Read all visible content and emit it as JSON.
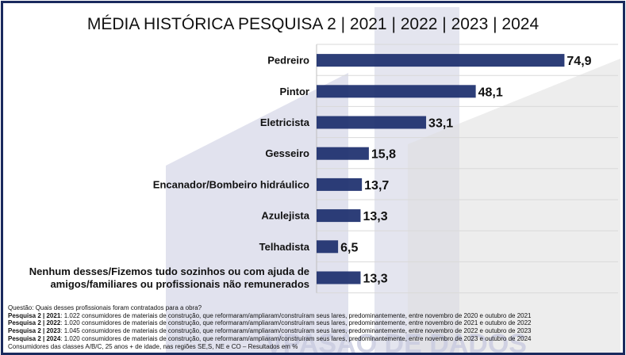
{
  "title": "MÉDIA HISTÓRICA PESQUISA 2 | 2021 | 2022 | 2023 | 2024",
  "watermark": "VPASÃO DE DADOS",
  "colors": {
    "bar": "#1b2e6c",
    "frame": "#1a2a5e",
    "grid": "#d9d9d9"
  },
  "chart_data": {
    "type": "bar",
    "orientation": "horizontal",
    "title": "MÉDIA HISTÓRICA PESQUISA 2 | 2021 | 2022 | 2023 | 2024",
    "categories": [
      "Pedreiro",
      "Pintor",
      "Eletricista",
      "Gesseiro",
      "Encanador/Bombeiro hidráulico",
      "Azulejista",
      "Telhadista",
      "Nenhum desses/Fizemos tudo sozinhos ou com ajuda de amigos/familiares ou profissionais não remunerados"
    ],
    "category_lines": [
      [
        "Pedreiro"
      ],
      [
        "Pintor"
      ],
      [
        "Eletricista"
      ],
      [
        "Gesseiro"
      ],
      [
        "Encanador/Bombeiro hidráulico"
      ],
      [
        "Azulejista"
      ],
      [
        "Telhadista"
      ],
      [
        "Nenhum desses/Fizemos tudo sozinhos ou com ajuda de",
        "amigos/familiares ou profissionais não remunerados"
      ]
    ],
    "values": [
      74.9,
      48.1,
      33.1,
      15.8,
      13.7,
      13.3,
      6.5,
      13.3
    ],
    "value_labels": [
      "74,9",
      "48,1",
      "33,1",
      "15,8",
      "13,7",
      "13,3",
      "6,5",
      "13,3"
    ],
    "xlim": [
      0,
      76
    ],
    "xlabel": "",
    "ylabel": "",
    "grid": true,
    "legend": "none"
  },
  "notes": {
    "question": "Questão: Quais desses profissionais foram contratados para a obra?",
    "lines": [
      {
        "label": "Pesquisa 2 | 2021",
        "text": ": 1.022 consumidores de materiais de construção, que reformaram/ampliaram/construíram seus lares, predominantemente, entre novembro de 2020 e outubro de 2021"
      },
      {
        "label": "Pesquisa 2 | 2022",
        "text": ": 1.020 consumidores de materiais de construção, que reformaram/ampliaram/construíram seus lares, predominantemente, entre novembro de 2021 e outubro de 2022"
      },
      {
        "label": "Pesquisa 2 | 2023",
        "text": ": 1.045 consumidores de materiais de construção, que reformaram/ampliaram/construíram seus lares, predominantemente, entre novembro de 2022 e outubro de 2023"
      },
      {
        "label": "Pesquisa 2 | 2024",
        "text": ": 1.020 consumidores de materiais de construção, que reformaram/ampliaram/construíram seus lares, predominantemente, entre novembro de 2023 e outubro de 2024"
      }
    ],
    "footer": "Consumidores das classes A/B/C, 25 anos + de idade, nas regiões SE,S, NE e CO – Resultados em %"
  }
}
